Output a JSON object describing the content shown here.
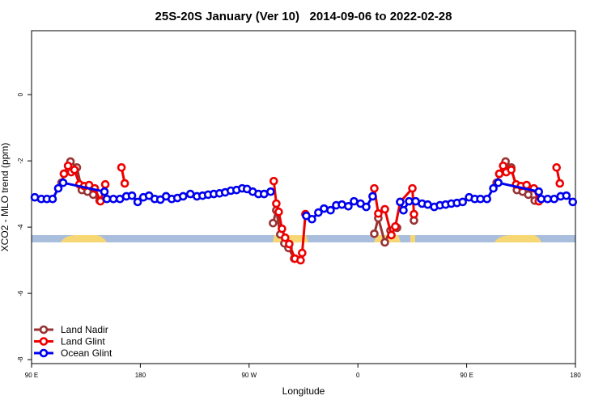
{
  "chart_data": {
    "type": "line",
    "title": "25S-20S January (Ver 10)   2014-09-06 to 2022-02-28",
    "x_label": "Longitude",
    "y_label": "XCO2 - MLO trend (ppm)",
    "xlim": [
      90,
      540
    ],
    "ylim": [
      -8.12,
      1.93
    ],
    "xticks": [
      {
        "value": 90,
        "label": "90 E"
      },
      {
        "value": 180,
        "label": "180"
      },
      {
        "value": 270,
        "label": "90 W"
      },
      {
        "value": 360,
        "label": "0"
      },
      {
        "value": 450,
        "label": "90 E"
      },
      {
        "value": 540,
        "label": "180"
      }
    ],
    "yticks": [
      0,
      -2,
      -4,
      -6,
      -8
    ],
    "legend": "bottom-left",
    "series": [
      {
        "name": "Land Nadir",
        "color": "#993333",
        "x": [
          114.8,
          116.8,
          122.2,
          127.5,
          131.6,
          136.3,
          141.0,
          146.3,
          null,
          289.8,
          292.5,
          295.8,
          299.2,
          302.6,
          307.3,
          null,
          373.6,
          376.9,
          382.3,
          387.0,
          392.4,
          null,
          406.4,
          null,
          474.8,
          477.0,
          482.2,
          486.9,
          491.6,
          496.3,
          501.0,
          506.3
        ],
        "values": [
          -2.66,
          -2.39,
          -2.02,
          -2.2,
          -2.88,
          -2.93,
          -3.02,
          -3.2,
          null,
          -3.88,
          -3.49,
          -4.22,
          -4.49,
          -4.63,
          -4.95,
          null,
          -4.2,
          -3.73,
          -4.46,
          -4.1,
          -4.02,
          null,
          -3.8,
          null,
          -2.66,
          -2.39,
          -2.02,
          -2.2,
          -2.88,
          -2.93,
          -3.02,
          -3.2
        ]
      },
      {
        "name": "Land Glint",
        "color": "#ee0000",
        "x": [
          116.8,
          120.2,
          122.8,
          125.5,
          129.6,
          133.6,
          137.6,
          142.3,
          147.0,
          151.0,
          null,
          164.4,
          167.1,
          null,
          290.4,
          292.5,
          294.5,
          297.2,
          299.8,
          303.2,
          307.9,
          312.6,
          313.9,
          316.6,
          null,
          373.6,
          376.9,
          382.3,
          387.7,
          391.0,
          395.0,
          405.1,
          406.4,
          null,
          477.0,
          480.2,
          482.8,
          486.9,
          490.9,
          494.9,
          499.6,
          505.6,
          509.7,
          null,
          524.4,
          527.1
        ],
        "values": [
          -2.39,
          -2.15,
          -2.34,
          -2.27,
          -2.71,
          -2.76,
          -2.73,
          -2.83,
          -3.22,
          -2.71,
          null,
          -2.2,
          -2.68,
          null,
          -2.61,
          -3.29,
          -3.54,
          -4.05,
          -4.32,
          -4.51,
          -4.95,
          -5.0,
          -4.78,
          -3.61,
          null,
          -2.83,
          -3.59,
          -3.46,
          -4.24,
          -3.98,
          -3.24,
          -2.83,
          -3.61,
          null,
          -2.39,
          -2.15,
          -2.34,
          -2.27,
          -2.71,
          -2.76,
          -2.73,
          -2.83,
          -3.22,
          null,
          -2.2,
          -2.68
        ]
      },
      {
        "name": "Ocean Glint",
        "color": "#0000ee",
        "x": [
          92.7,
          98.0,
          102.7,
          107.4,
          112.1,
          116.1,
          150.3,
          152.3,
          157.7,
          163.1,
          168.4,
          173.1,
          177.8,
          182.5,
          187.2,
          191.9,
          196.6,
          201.3,
          206.0,
          210.7,
          215.4,
          221.4,
          226.8,
          231.5,
          236.1,
          240.8,
          245.5,
          250.2,
          254.9,
          259.6,
          264.3,
          268.3,
          273.0,
          277.7,
          282.4,
          287.8,
          null,
          317.3,
          322.0,
          327.3,
          332.0,
          337.4,
          342.1,
          346.8,
          352.1,
          356.8,
          362.2,
          366.9,
          372.2,
          null,
          395.0,
          397.7,
          402.4,
          407.8,
          413.1,
          417.8,
          423.2,
          427.9,
          432.6,
          437.3,
          442.0,
          446.7,
          452.0,
          456.7,
          461.4,
          466.8,
          472.1,
          476.2,
          509.7,
          511.7,
          517.0,
          522.4,
          527.8,
          532.5,
          537.8
        ],
        "values": [
          -3.1,
          -3.15,
          -3.15,
          -3.15,
          -2.83,
          -2.66,
          -2.93,
          -3.15,
          -3.15,
          -3.15,
          -3.07,
          -3.05,
          -3.24,
          -3.1,
          -3.05,
          -3.15,
          -3.17,
          -3.07,
          -3.15,
          -3.12,
          -3.07,
          -3.0,
          -3.07,
          -3.05,
          -3.02,
          -3.0,
          -2.98,
          -2.95,
          -2.9,
          -2.88,
          -2.83,
          -2.85,
          -2.93,
          -3.0,
          -3.0,
          -2.93,
          null,
          -3.66,
          -3.76,
          -3.56,
          -3.44,
          -3.49,
          -3.34,
          -3.32,
          -3.37,
          -3.22,
          -3.29,
          -3.39,
          -3.07,
          null,
          -3.24,
          -3.49,
          -3.22,
          -3.22,
          -3.29,
          -3.32,
          -3.39,
          -3.34,
          -3.32,
          -3.29,
          -3.27,
          -3.24,
          -3.1,
          -3.15,
          -3.15,
          -3.15,
          -2.83,
          -2.66,
          -2.93,
          -3.15,
          -3.15,
          -3.15,
          -3.07,
          -3.05,
          -3.24
        ]
      }
    ]
  }
}
